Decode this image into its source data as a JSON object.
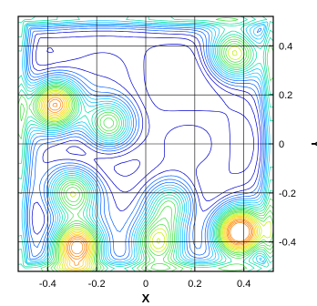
{
  "chart_data": {
    "type": "contour",
    "title": "",
    "xlabel": "X",
    "ylabel": "Y",
    "xlim": [
      -0.52,
      0.52
    ],
    "ylim": [
      -0.52,
      0.52
    ],
    "x_ticks": [
      -0.4,
      -0.2,
      0,
      0.2,
      0.4
    ],
    "x_tick_labels": [
      "-0.4",
      "-0.2",
      "0",
      "0.2",
      "0.4"
    ],
    "y_ticks": [
      -0.4,
      -0.2,
      0,
      0.2,
      0.4
    ],
    "y_tick_labels": [
      "-0.4",
      "-0.2",
      "0",
      "0.2",
      "0.4"
    ],
    "grid": true,
    "ytick_side": "right",
    "colormap": [
      "#0000d0",
      "#0060ff",
      "#00c0ff",
      "#00e0a0",
      "#40e040",
      "#c0f000",
      "#ffd000",
      "#ff8000",
      "#ff2000"
    ],
    "local_maxima": [
      {
        "x": 0.38,
        "y": -0.36,
        "level": 1.0
      },
      {
        "x": -0.37,
        "y": 0.16,
        "level": 0.85
      },
      {
        "x": -0.28,
        "y": -0.42,
        "level": 0.9
      },
      {
        "x": 0.36,
        "y": 0.37,
        "level": 0.6
      },
      {
        "x": -0.3,
        "y": -0.2,
        "level": 0.55
      },
      {
        "x": 0.05,
        "y": -0.4,
        "level": 0.6
      },
      {
        "x": -0.15,
        "y": 0.08,
        "level": 0.55
      },
      {
        "x": 0.1,
        "y": -0.25,
        "level": 0.45
      }
    ]
  }
}
